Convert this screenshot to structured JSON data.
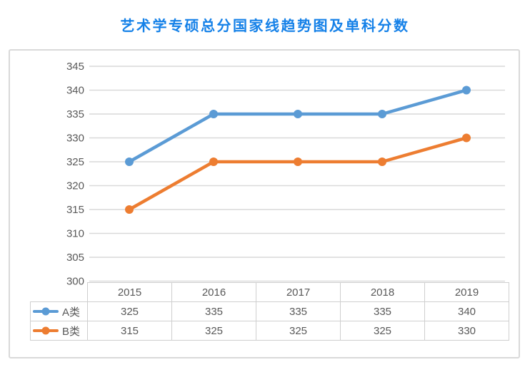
{
  "page": {
    "title": "艺术学专硕总分国家线趋势图及单科分数"
  },
  "colors": {
    "title_accent": "#1581E8",
    "series_a": "#5B9BD5",
    "series_b": "#ED7D31",
    "gridline": "#D9D9D9",
    "axis_text": "#595959",
    "table_border": "#CFCFCF",
    "container_border": "#D9D9D9"
  },
  "chart_data": {
    "type": "line",
    "title": "艺术学专硕总分国家线趋势图及单科分数",
    "categories": [
      "2015",
      "2016",
      "2017",
      "2018",
      "2019"
    ],
    "series": [
      {
        "name": "A类",
        "values": [
          325,
          335,
          335,
          335,
          340
        ],
        "color": "#5B9BD5"
      },
      {
        "name": "B类",
        "values": [
          315,
          325,
          325,
          325,
          330
        ],
        "color": "#ED7D31"
      }
    ],
    "xlabel": "",
    "ylabel": "",
    "ylim": [
      300,
      345
    ],
    "ytick_step": 5,
    "yticks": [
      345,
      340,
      335,
      330,
      325,
      320,
      315,
      310,
      305,
      300
    ],
    "grid": true,
    "marker": "circle",
    "legend_position": "table-left"
  }
}
